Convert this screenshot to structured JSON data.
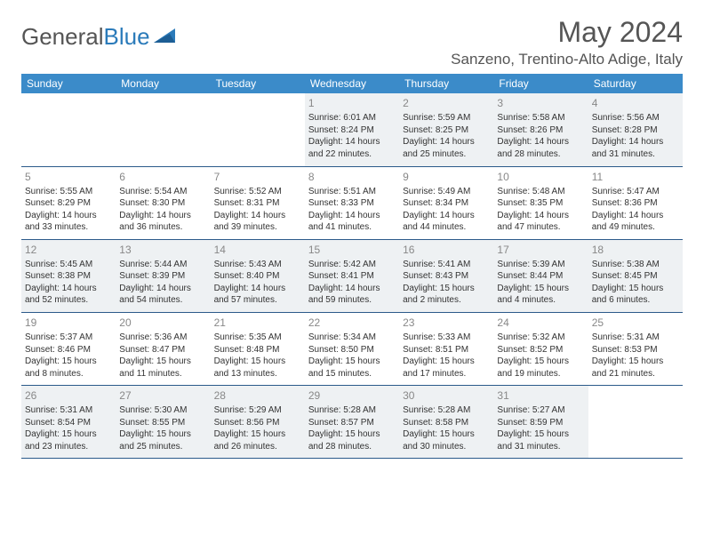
{
  "brand": {
    "name_part1": "General",
    "name_part2": "Blue"
  },
  "title": "May 2024",
  "location": "Sanzeno, Trentino-Alto Adige, Italy",
  "colors": {
    "header_bg": "#3b8bc9",
    "header_text": "#ffffff",
    "title_text": "#555555",
    "cell_text": "#333333",
    "daynum_text": "#888888",
    "row_alt_bg": "#eef1f3",
    "row_border": "#2b5a8a",
    "brand_blue": "#2b7bba"
  },
  "day_headers": [
    "Sunday",
    "Monday",
    "Tuesday",
    "Wednesday",
    "Thursday",
    "Friday",
    "Saturday"
  ],
  "weeks": [
    [
      null,
      null,
      null,
      {
        "n": "1",
        "sr": "Sunrise: 6:01 AM",
        "ss": "Sunset: 8:24 PM",
        "d1": "Daylight: 14 hours",
        "d2": "and 22 minutes."
      },
      {
        "n": "2",
        "sr": "Sunrise: 5:59 AM",
        "ss": "Sunset: 8:25 PM",
        "d1": "Daylight: 14 hours",
        "d2": "and 25 minutes."
      },
      {
        "n": "3",
        "sr": "Sunrise: 5:58 AM",
        "ss": "Sunset: 8:26 PM",
        "d1": "Daylight: 14 hours",
        "d2": "and 28 minutes."
      },
      {
        "n": "4",
        "sr": "Sunrise: 5:56 AM",
        "ss": "Sunset: 8:28 PM",
        "d1": "Daylight: 14 hours",
        "d2": "and 31 minutes."
      }
    ],
    [
      {
        "n": "5",
        "sr": "Sunrise: 5:55 AM",
        "ss": "Sunset: 8:29 PM",
        "d1": "Daylight: 14 hours",
        "d2": "and 33 minutes."
      },
      {
        "n": "6",
        "sr": "Sunrise: 5:54 AM",
        "ss": "Sunset: 8:30 PM",
        "d1": "Daylight: 14 hours",
        "d2": "and 36 minutes."
      },
      {
        "n": "7",
        "sr": "Sunrise: 5:52 AM",
        "ss": "Sunset: 8:31 PM",
        "d1": "Daylight: 14 hours",
        "d2": "and 39 minutes."
      },
      {
        "n": "8",
        "sr": "Sunrise: 5:51 AM",
        "ss": "Sunset: 8:33 PM",
        "d1": "Daylight: 14 hours",
        "d2": "and 41 minutes."
      },
      {
        "n": "9",
        "sr": "Sunrise: 5:49 AM",
        "ss": "Sunset: 8:34 PM",
        "d1": "Daylight: 14 hours",
        "d2": "and 44 minutes."
      },
      {
        "n": "10",
        "sr": "Sunrise: 5:48 AM",
        "ss": "Sunset: 8:35 PM",
        "d1": "Daylight: 14 hours",
        "d2": "and 47 minutes."
      },
      {
        "n": "11",
        "sr": "Sunrise: 5:47 AM",
        "ss": "Sunset: 8:36 PM",
        "d1": "Daylight: 14 hours",
        "d2": "and 49 minutes."
      }
    ],
    [
      {
        "n": "12",
        "sr": "Sunrise: 5:45 AM",
        "ss": "Sunset: 8:38 PM",
        "d1": "Daylight: 14 hours",
        "d2": "and 52 minutes."
      },
      {
        "n": "13",
        "sr": "Sunrise: 5:44 AM",
        "ss": "Sunset: 8:39 PM",
        "d1": "Daylight: 14 hours",
        "d2": "and 54 minutes."
      },
      {
        "n": "14",
        "sr": "Sunrise: 5:43 AM",
        "ss": "Sunset: 8:40 PM",
        "d1": "Daylight: 14 hours",
        "d2": "and 57 minutes."
      },
      {
        "n": "15",
        "sr": "Sunrise: 5:42 AM",
        "ss": "Sunset: 8:41 PM",
        "d1": "Daylight: 14 hours",
        "d2": "and 59 minutes."
      },
      {
        "n": "16",
        "sr": "Sunrise: 5:41 AM",
        "ss": "Sunset: 8:43 PM",
        "d1": "Daylight: 15 hours",
        "d2": "and 2 minutes."
      },
      {
        "n": "17",
        "sr": "Sunrise: 5:39 AM",
        "ss": "Sunset: 8:44 PM",
        "d1": "Daylight: 15 hours",
        "d2": "and 4 minutes."
      },
      {
        "n": "18",
        "sr": "Sunrise: 5:38 AM",
        "ss": "Sunset: 8:45 PM",
        "d1": "Daylight: 15 hours",
        "d2": "and 6 minutes."
      }
    ],
    [
      {
        "n": "19",
        "sr": "Sunrise: 5:37 AM",
        "ss": "Sunset: 8:46 PM",
        "d1": "Daylight: 15 hours",
        "d2": "and 8 minutes."
      },
      {
        "n": "20",
        "sr": "Sunrise: 5:36 AM",
        "ss": "Sunset: 8:47 PM",
        "d1": "Daylight: 15 hours",
        "d2": "and 11 minutes."
      },
      {
        "n": "21",
        "sr": "Sunrise: 5:35 AM",
        "ss": "Sunset: 8:48 PM",
        "d1": "Daylight: 15 hours",
        "d2": "and 13 minutes."
      },
      {
        "n": "22",
        "sr": "Sunrise: 5:34 AM",
        "ss": "Sunset: 8:50 PM",
        "d1": "Daylight: 15 hours",
        "d2": "and 15 minutes."
      },
      {
        "n": "23",
        "sr": "Sunrise: 5:33 AM",
        "ss": "Sunset: 8:51 PM",
        "d1": "Daylight: 15 hours",
        "d2": "and 17 minutes."
      },
      {
        "n": "24",
        "sr": "Sunrise: 5:32 AM",
        "ss": "Sunset: 8:52 PM",
        "d1": "Daylight: 15 hours",
        "d2": "and 19 minutes."
      },
      {
        "n": "25",
        "sr": "Sunrise: 5:31 AM",
        "ss": "Sunset: 8:53 PM",
        "d1": "Daylight: 15 hours",
        "d2": "and 21 minutes."
      }
    ],
    [
      {
        "n": "26",
        "sr": "Sunrise: 5:31 AM",
        "ss": "Sunset: 8:54 PM",
        "d1": "Daylight: 15 hours",
        "d2": "and 23 minutes."
      },
      {
        "n": "27",
        "sr": "Sunrise: 5:30 AM",
        "ss": "Sunset: 8:55 PM",
        "d1": "Daylight: 15 hours",
        "d2": "and 25 minutes."
      },
      {
        "n": "28",
        "sr": "Sunrise: 5:29 AM",
        "ss": "Sunset: 8:56 PM",
        "d1": "Daylight: 15 hours",
        "d2": "and 26 minutes."
      },
      {
        "n": "29",
        "sr": "Sunrise: 5:28 AM",
        "ss": "Sunset: 8:57 PM",
        "d1": "Daylight: 15 hours",
        "d2": "and 28 minutes."
      },
      {
        "n": "30",
        "sr": "Sunrise: 5:28 AM",
        "ss": "Sunset: 8:58 PM",
        "d1": "Daylight: 15 hours",
        "d2": "and 30 minutes."
      },
      {
        "n": "31",
        "sr": "Sunrise: 5:27 AM",
        "ss": "Sunset: 8:59 PM",
        "d1": "Daylight: 15 hours",
        "d2": "and 31 minutes."
      },
      null
    ]
  ]
}
